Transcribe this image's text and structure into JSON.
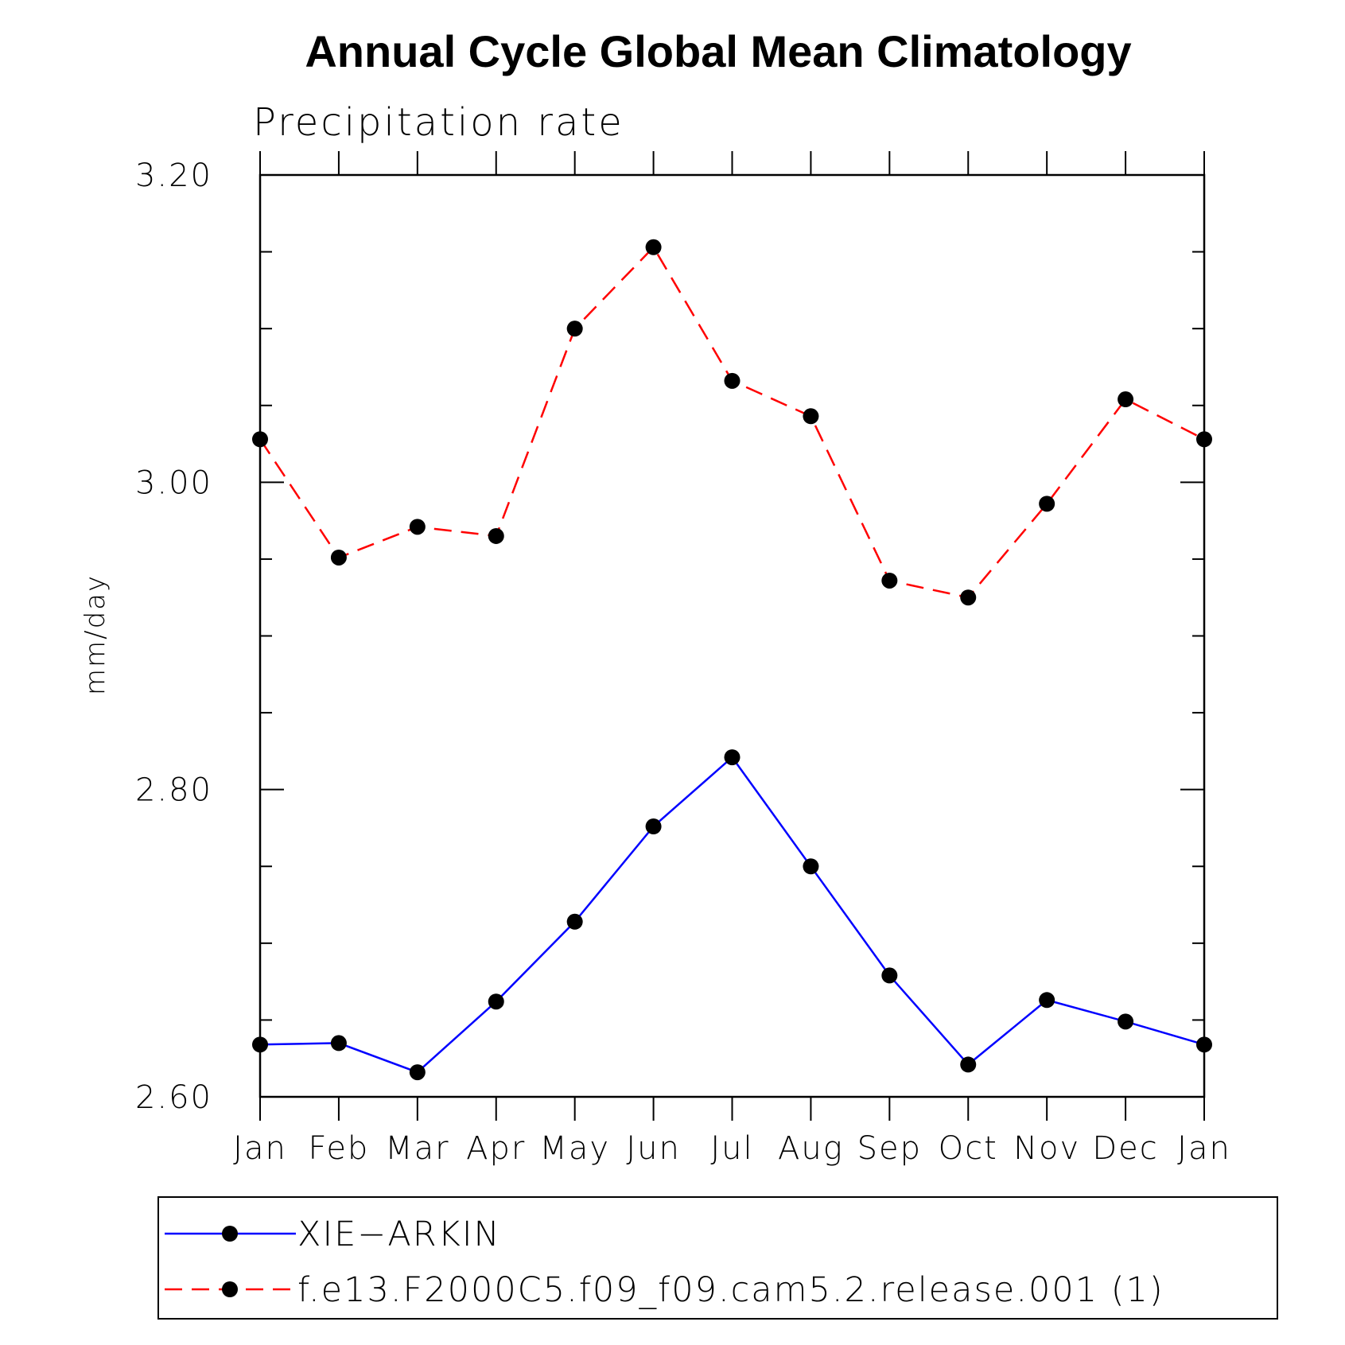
{
  "chart_data": {
    "type": "line",
    "title": "Annual Cycle Global Mean Climatology",
    "subtitle": "Precipitation rate",
    "ylabel": "mm/day",
    "xlabel": "",
    "categories": [
      "Jan",
      "Feb",
      "Mar",
      "Apr",
      "May",
      "Jun",
      "Jul",
      "Aug",
      "Sep",
      "Oct",
      "Nov",
      "Dec",
      "Jan"
    ],
    "ylim": [
      2.6,
      3.2
    ],
    "yticks": [
      "2.60",
      "2.80",
      "3.00",
      "3.20"
    ],
    "ytick_values": [
      2.6,
      2.8,
      3.0,
      3.2
    ],
    "y_minor_step": 0.05,
    "grid": false,
    "legend_position": "bottom",
    "series": [
      {
        "name": "XIE−ARKIN",
        "color": "#0000ff",
        "dash": "solid",
        "marker": "filled-circle",
        "values": [
          2.634,
          2.635,
          2.616,
          2.662,
          2.714,
          2.776,
          2.821,
          2.75,
          2.679,
          2.621,
          2.663,
          2.649,
          2.634
        ]
      },
      {
        "name": "f.e13.F2000C5.f09_f09.cam5.2.release.001 (1)",
        "color": "#ff0000",
        "dash": "dashed",
        "marker": "filled-circle",
        "values": [
          3.028,
          2.951,
          2.971,
          2.965,
          3.1,
          3.153,
          3.066,
          3.043,
          2.936,
          2.925,
          2.986,
          3.054,
          3.028
        ]
      }
    ]
  }
}
